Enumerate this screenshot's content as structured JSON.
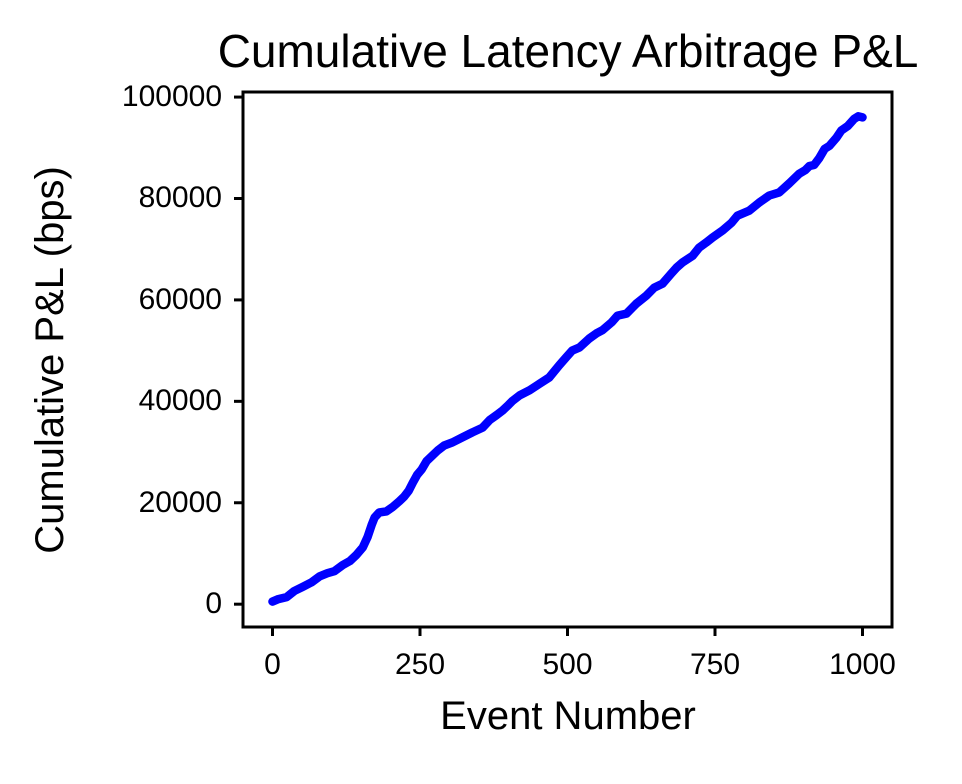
{
  "chart_data": {
    "type": "line",
    "title": "Cumulative Latency Arbitrage P&L",
    "xlabel": "Event Number",
    "ylabel": "Cumulative P&L (bps)",
    "xlim": [
      -50,
      1050
    ],
    "ylim": [
      -4500,
      101000
    ],
    "x_ticks": [
      0,
      250,
      500,
      750,
      1000
    ],
    "y_ticks": [
      0,
      20000,
      40000,
      60000,
      80000,
      100000
    ],
    "grid": false,
    "legend": null,
    "series": [
      {
        "name": "cumulative-pnl",
        "color": "#0000ff",
        "x": [
          0,
          10,
          24,
          37,
          51,
          66,
          80,
          93,
          105,
          119,
          131,
          142,
          153,
          161,
          168,
          173,
          181,
          193,
          203,
          215,
          223,
          231,
          238,
          245,
          253,
          261,
          271,
          280,
          291,
          305,
          322,
          339,
          356,
          368,
          380,
          390,
          400,
          407,
          419,
          436,
          453,
          469,
          486,
          498,
          508,
          520,
          537,
          549,
          559,
          575,
          585,
          600,
          617,
          634,
          647,
          661,
          676,
          685,
          695,
          712,
          723,
          735,
          746,
          763,
          778,
          788,
          808,
          825,
          842,
          859,
          876,
          893,
          903,
          910,
          918,
          927,
          936,
          944,
          956,
          964,
          975,
          986,
          993,
          1000
        ],
        "y": [
          500,
          1000,
          1400,
          2600,
          3400,
          4300,
          5500,
          6100,
          6500,
          7700,
          8500,
          9700,
          11200,
          13200,
          15600,
          17100,
          18100,
          18300,
          19100,
          20300,
          21200,
          22400,
          24000,
          25500,
          26600,
          28200,
          29300,
          30300,
          31300,
          31900,
          32900,
          33900,
          34800,
          36300,
          37300,
          38200,
          39300,
          40100,
          41200,
          42200,
          43500,
          44700,
          47100,
          48700,
          50000,
          50600,
          52400,
          53400,
          54000,
          55600,
          56900,
          57300,
          59300,
          60900,
          62400,
          63200,
          65200,
          66400,
          67400,
          68700,
          70300,
          71300,
          72300,
          73700,
          75200,
          76600,
          77600,
          79200,
          80600,
          81200,
          83000,
          84900,
          85600,
          86400,
          86600,
          88000,
          89800,
          90400,
          92000,
          93400,
          94300,
          95700,
          96200,
          96000
        ]
      }
    ]
  },
  "colors": {
    "line": "#0000ff",
    "axis": "#000000",
    "text": "#000000",
    "background": "#ffffff"
  }
}
